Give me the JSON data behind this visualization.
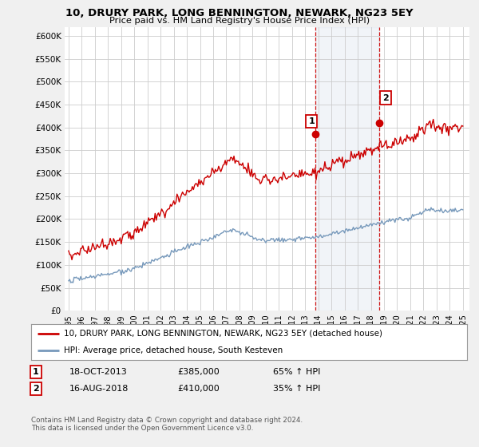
{
  "title": "10, DRURY PARK, LONG BENNINGTON, NEWARK, NG23 5EY",
  "subtitle": "Price paid vs. HM Land Registry's House Price Index (HPI)",
  "ylabel_ticks": [
    "£0",
    "£50K",
    "£100K",
    "£150K",
    "£200K",
    "£250K",
    "£300K",
    "£350K",
    "£400K",
    "£450K",
    "£500K",
    "£550K",
    "£600K"
  ],
  "ytick_values": [
    0,
    50000,
    100000,
    150000,
    200000,
    250000,
    300000,
    350000,
    400000,
    450000,
    500000,
    550000,
    600000
  ],
  "ylim": [
    0,
    620000
  ],
  "xlim_start": 1994.7,
  "xlim_end": 2025.5,
  "red_color": "#cc0000",
  "blue_color": "#7799bb",
  "background_color": "#f0f0f0",
  "plot_bg_color": "#ffffff",
  "grid_color": "#cccccc",
  "vline1_x": 2013.79,
  "vline2_x": 2018.62,
  "ann1_label": "1",
  "ann1_x": 2013.79,
  "ann1_y": 385000,
  "ann1_date": "18-OCT-2013",
  "ann1_price": "£385,000",
  "ann1_hpi": "65% ↑ HPI",
  "ann2_label": "2",
  "ann2_x": 2018.62,
  "ann2_y": 410000,
  "ann2_date": "16-AUG-2018",
  "ann2_price": "£410,000",
  "ann2_hpi": "35% ↑ HPI",
  "legend_line1": "10, DRURY PARK, LONG BENNINGTON, NEWARK, NG23 5EY (detached house)",
  "legend_line2": "HPI: Average price, detached house, South Kesteven",
  "footer1": "Contains HM Land Registry data © Crown copyright and database right 2024.",
  "footer2": "This data is licensed under the Open Government Licence v3.0."
}
